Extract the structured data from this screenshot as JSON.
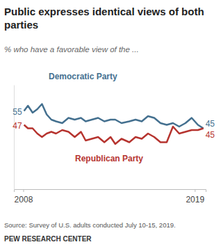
{
  "chart_data": {
    "type": "line",
    "title": "Public expresses identical views of both parties",
    "subtitle": "% who have a favorable view of the ...",
    "x": [
      2008.05,
      2008.3,
      2008.6,
      2008.9,
      2009.2,
      2009.5,
      2009.8,
      2010.1,
      2010.5,
      2010.9,
      2011.3,
      2011.7,
      2012.0,
      2012.4,
      2012.8,
      2013.2,
      2013.6,
      2013.9,
      2014.3,
      2014.8,
      2015.2,
      2015.6,
      2016.0,
      2016.4,
      2016.8,
      2017.2,
      2017.6,
      2018.0,
      2018.4,
      2018.8,
      2019.2,
      2019.55
    ],
    "series": [
      {
        "name": "Democratic Party",
        "color": "#44708f",
        "values": [
          55,
          58,
          54,
          56,
          59,
          53,
          50,
          49,
          48,
          51,
          50,
          51,
          49,
          50,
          51,
          49,
          50,
          50,
          48,
          49,
          50,
          49,
          52,
          51,
          48,
          47,
          48,
          46,
          48,
          51,
          47,
          45
        ],
        "value_labels": [
          "55",
          null,
          null,
          null,
          null,
          null,
          null,
          null,
          null,
          null,
          null,
          null,
          null,
          null,
          null,
          null,
          null,
          null,
          null,
          null,
          null,
          null,
          null,
          null,
          null,
          null,
          null,
          null,
          null,
          null,
          null,
          "45"
        ]
      },
      {
        "name": "Republican Party",
        "color": "#b6342f",
        "values": [
          47,
          45,
          45,
          42,
          40,
          42,
          43,
          42,
          44,
          43,
          40,
          43,
          38,
          39,
          40,
          37,
          40,
          36,
          39,
          37,
          40,
          39,
          42,
          40,
          37,
          37,
          46,
          42,
          43,
          44,
          44,
          45
        ],
        "value_labels": [
          "47",
          null,
          null,
          null,
          null,
          null,
          null,
          null,
          null,
          null,
          null,
          null,
          null,
          null,
          null,
          null,
          null,
          null,
          null,
          null,
          null,
          null,
          null,
          null,
          null,
          null,
          null,
          null,
          null,
          null,
          null,
          "45"
        ]
      }
    ],
    "xlim": [
      2007.4,
      2019.7
    ],
    "xticks": [
      2008,
      2019
    ],
    "ylim": [
      10,
      70
    ],
    "tick_labels": "x",
    "grid": false,
    "source": "Source: Survey of U.S. adults conducted July 10-15, 2019.",
    "credit": "PEW RESEARCH CENTER"
  }
}
